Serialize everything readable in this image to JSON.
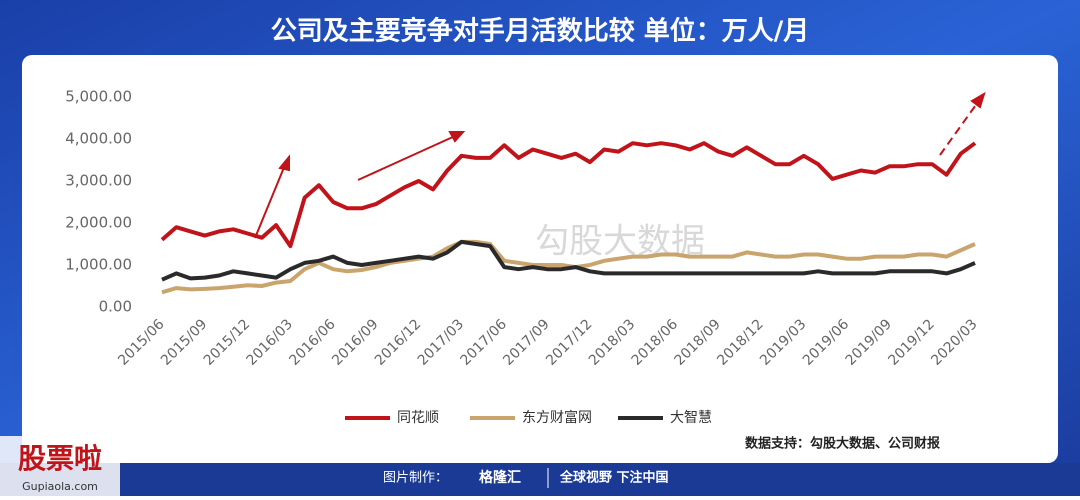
{
  "chart_data": {
    "type": "line",
    "title": "公司及主要竞争对手月活数比较 单位：万人/月",
    "source": "数据支持：勾股大数据、公司财报",
    "watermark": "勾股大数据",
    "categories": [
      "2015/06",
      null,
      null,
      "2015/09",
      null,
      null,
      "2015/12",
      null,
      null,
      "2016/03",
      null,
      null,
      "2016/06",
      null,
      null,
      "2016/09",
      null,
      null,
      "2016/12",
      null,
      null,
      "2017/03",
      null,
      null,
      "2017/06",
      null,
      null,
      "2017/09",
      null,
      null,
      "2017/12",
      null,
      null,
      "2018/03",
      null,
      null,
      "2018/06",
      null,
      null,
      "2018/09",
      null,
      null,
      "2018/12",
      null,
      null,
      "2019/03",
      null,
      null,
      "2019/06",
      null,
      null,
      "2019/09",
      null,
      null,
      "2019/12",
      null,
      null,
      "2020/03"
    ],
    "series": [
      {
        "name": "同花顺",
        "color": "#c0141a",
        "values": [
          1600,
          1900,
          1800,
          1700,
          1800,
          1850,
          1750,
          1650,
          1950,
          1450,
          2600,
          2900,
          2500,
          2350,
          2350,
          2450,
          2650,
          2850,
          3000,
          2800,
          3250,
          3600,
          3550,
          3550,
          3850,
          3550,
          3750,
          3650,
          3550,
          3650,
          3450,
          3750,
          3700,
          3900,
          3850,
          3900,
          3850,
          3750,
          3900,
          3700,
          3600,
          3800,
          3600,
          3400,
          3400,
          3600,
          3400,
          3050,
          3150,
          3250,
          3200,
          3350,
          3350,
          3400,
          3400,
          3150,
          3650,
          3900
        ]
      },
      {
        "name": "东方财富网",
        "color": "#c9a46c",
        "values": [
          350,
          450,
          420,
          430,
          450,
          480,
          520,
          500,
          580,
          620,
          900,
          1050,
          900,
          850,
          880,
          950,
          1050,
          1100,
          1150,
          1200,
          1400,
          1550,
          1550,
          1500,
          1100,
          1050,
          1000,
          1000,
          1000,
          950,
          1000,
          1100,
          1150,
          1200,
          1200,
          1250,
          1250,
          1200,
          1200,
          1200,
          1200,
          1300,
          1250,
          1200,
          1200,
          1250,
          1250,
          1200,
          1150,
          1150,
          1200,
          1200,
          1200,
          1250,
          1250,
          1200,
          1350,
          1500
        ]
      },
      {
        "name": "大智慧",
        "color": "#2a2a2a",
        "values": [
          650,
          800,
          680,
          700,
          750,
          850,
          800,
          750,
          700,
          900,
          1050,
          1100,
          1200,
          1050,
          1000,
          1050,
          1100,
          1150,
          1200,
          1150,
          1300,
          1550,
          1500,
          1450,
          950,
          900,
          950,
          900,
          900,
          950,
          850,
          800,
          800,
          800,
          800,
          800,
          800,
          800,
          800,
          800,
          800,
          800,
          800,
          800,
          800,
          800,
          850,
          800,
          800,
          800,
          800,
          850,
          850,
          850,
          850,
          800,
          900,
          1050
        ]
      }
    ],
    "ylim": [
      0,
      5000
    ],
    "yticks": [
      {
        "value": 0,
        "label": "0.00"
      },
      {
        "value": 1000,
        "label": "1,000.00"
      },
      {
        "value": 2000,
        "label": "2,000.00"
      },
      {
        "value": 3000,
        "label": "3,000.00"
      },
      {
        "value": 4000,
        "label": "4,000.00"
      },
      {
        "value": 5000,
        "label": "5,000.00"
      }
    ],
    "grid": false
  },
  "footer": {
    "made_by": "图片制作：",
    "brand": "格隆汇",
    "slogan": "全球视野 下注中国",
    "corner": "股票啦",
    "corner_url": "Gupiaola.com"
  }
}
